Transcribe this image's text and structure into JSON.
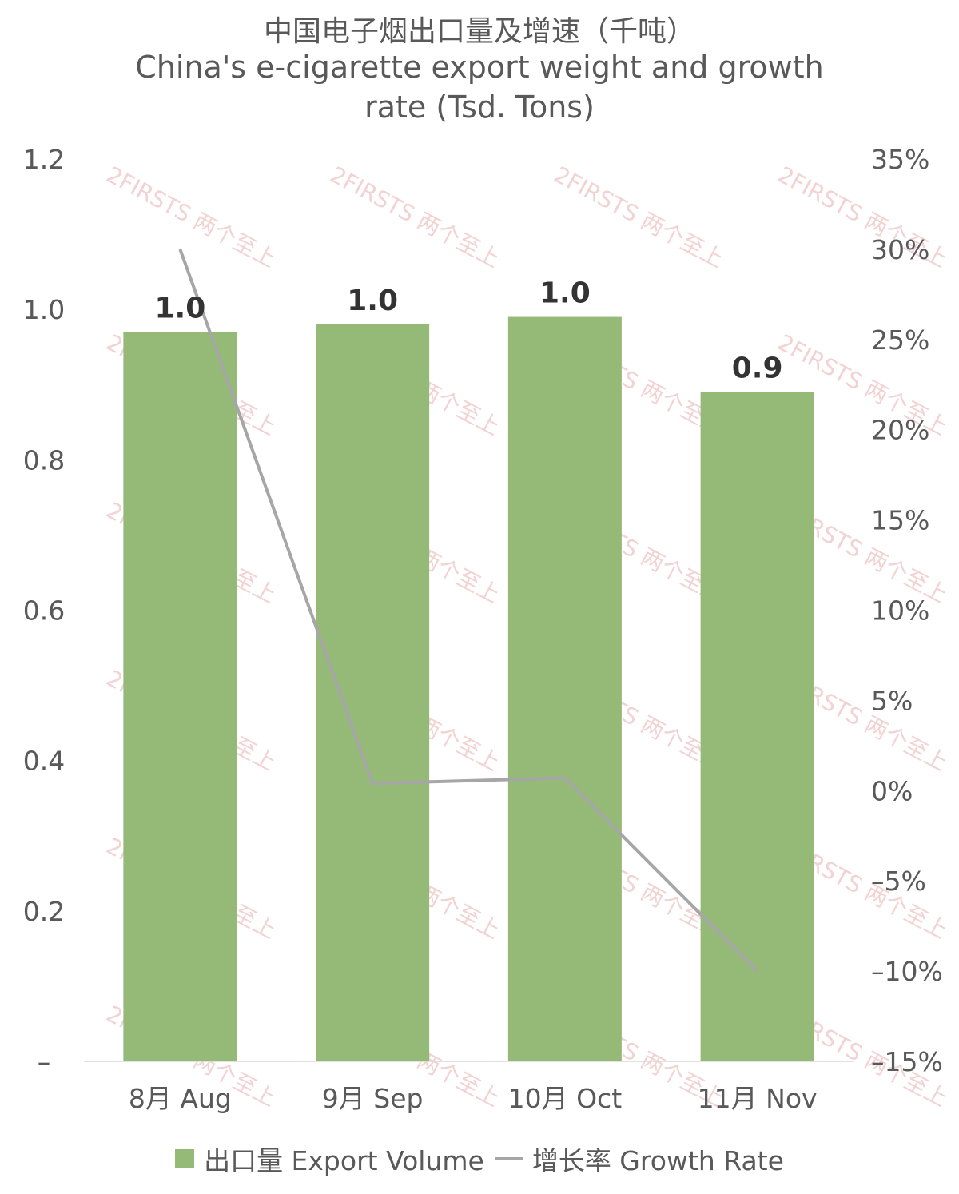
{
  "title": {
    "zh": "中国电子烟出口量及增速（千吨）",
    "en_line1": "China's e-cigarette export weight and growth",
    "en_line2": "rate (Tsd. Tons)"
  },
  "watermark": "2FIRSTS 两个至上",
  "colors": {
    "bar": "#95BA77",
    "line": "#A6A6A6",
    "axis_text": "#595959",
    "label_text": "#333333",
    "watermark": "#E8AFAF"
  },
  "chart_data": {
    "type": "bar",
    "categories": [
      "8月 Aug",
      "9月 Sep",
      "10月 Oct",
      "11月 Nov"
    ],
    "series": [
      {
        "name": "出口量 Export Volume",
        "type": "bar",
        "axis": "left",
        "values": [
          0.97,
          0.98,
          0.99,
          0.89
        ],
        "data_labels": [
          "1.0",
          "1.0",
          "1.0",
          "0.9"
        ]
      },
      {
        "name": "增长率 Growth Rate",
        "type": "line",
        "axis": "right",
        "values": [
          30.0,
          0.4,
          0.7,
          -10.0
        ]
      }
    ],
    "y_left": {
      "range": [
        0,
        1.2
      ],
      "ticks": [
        0,
        0.2,
        0.4,
        0.6,
        0.8,
        1.0,
        1.2
      ],
      "tick_labels": [
        "–",
        "0.2",
        "0.4",
        "0.6",
        "0.8",
        "1.0",
        "1.2"
      ]
    },
    "y_right": {
      "range": [
        -15,
        35
      ],
      "ticks": [
        -15,
        -10,
        -5,
        0,
        5,
        10,
        15,
        20,
        25,
        30,
        35
      ],
      "tick_labels": [
        "–15%",
        "–10%",
        "–5%",
        "0%",
        "5%",
        "10%",
        "15%",
        "20%",
        "25%",
        "30%",
        "35%"
      ]
    },
    "grid": false,
    "legend_position": "bottom"
  }
}
